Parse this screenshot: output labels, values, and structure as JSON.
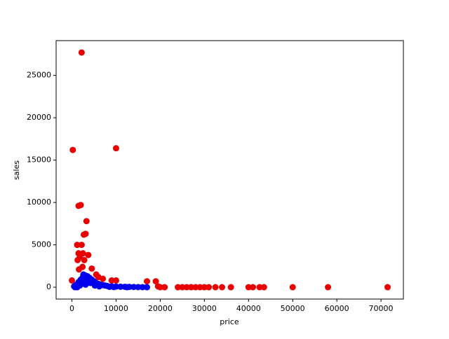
{
  "chart_data": {
    "type": "scatter",
    "x_label": "price",
    "y_label": "sales",
    "xlim": [
      -3575,
      75075
    ],
    "ylim": [
      -1400,
      29100
    ],
    "xticks": [
      0,
      10000,
      20000,
      30000,
      40000,
      50000,
      60000,
      70000
    ],
    "yticks": [
      0,
      5000,
      10000,
      15000,
      20000,
      25000
    ],
    "series": [
      {
        "name": "red",
        "color": "#e80000",
        "x": [
          2200,
          200,
          10000,
          1500,
          2000,
          2700,
          3100,
          3300,
          1200,
          2200,
          1500,
          1800,
          2500,
          3700,
          2800,
          1300,
          1600,
          2400,
          4500,
          5500,
          6000,
          7000,
          9000,
          10000,
          17000,
          19000,
          0,
          19500,
          20000,
          21000,
          24000,
          25000,
          26000,
          27000,
          28000,
          29000,
          30000,
          31000,
          32500,
          34000,
          36000,
          40000,
          41000,
          42500,
          43500,
          50000,
          58000,
          71500
        ],
        "y": [
          27700,
          16200,
          16400,
          9600,
          9700,
          6200,
          6300,
          7800,
          5000,
          5000,
          4000,
          3600,
          4000,
          3800,
          3200,
          3200,
          2100,
          2400,
          2200,
          1500,
          1200,
          1000,
          800,
          800,
          700,
          700,
          800,
          100,
          0,
          0,
          0,
          0,
          0,
          0,
          0,
          0,
          0,
          0,
          0,
          0,
          0,
          0,
          0,
          0,
          0,
          0,
          0,
          0
        ]
      },
      {
        "name": "blue",
        "color": "#0000ee",
        "x": [
          500,
          1000,
          1500,
          2000,
          2500,
          3000,
          3500,
          4000,
          4500,
          5000,
          5500,
          6000,
          6500,
          7000,
          7500,
          8000,
          9000,
          10000,
          11000,
          12000,
          13000,
          14000,
          15000,
          16000,
          17000,
          2200,
          2800,
          3300,
          3800,
          1800,
          2600,
          3100,
          4200,
          5200,
          6200,
          1200,
          700,
          8500,
          9500,
          12500
        ],
        "y": [
          100,
          300,
          600,
          900,
          1200,
          1400,
          1300,
          1100,
          900,
          700,
          500,
          400,
          300,
          250,
          200,
          150,
          100,
          80,
          60,
          50,
          40,
          30,
          20,
          10,
          0,
          400,
          800,
          1000,
          600,
          200,
          1500,
          300,
          500,
          200,
          100,
          0,
          0,
          50,
          20,
          0
        ]
      }
    ]
  }
}
